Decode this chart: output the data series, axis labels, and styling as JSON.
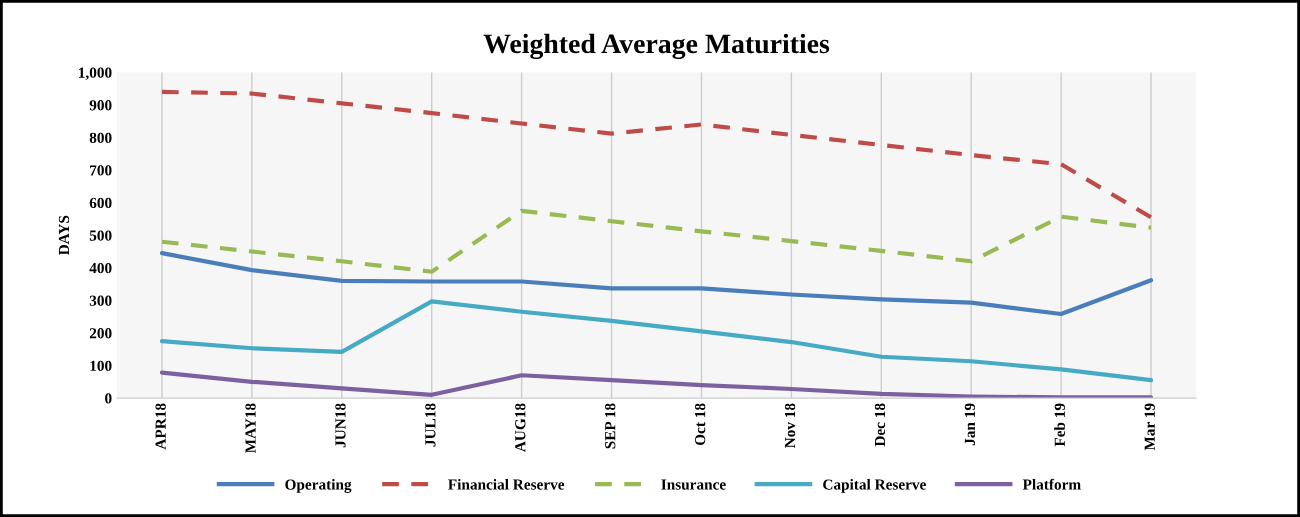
{
  "chart_data": {
    "type": "line",
    "title": "Weighted Average Maturities",
    "ylabel": "DAYS",
    "categories": [
      "APR18",
      "MAY18",
      "JUN18",
      "JUL18",
      "AUG18",
      "SEP 18",
      "Oct 18",
      "Nov 18",
      "Dec 18",
      "Jan 19",
      "Feb 19",
      "Mar 19"
    ],
    "series": [
      {
        "name": "Operating",
        "color": "#4a7ebb",
        "line_style": "solid",
        "values": [
          445,
          393,
          360,
          358,
          358,
          337,
          337,
          318,
          303,
          293,
          258,
          362
        ]
      },
      {
        "name": "Financial Reserve",
        "color": "#be4b48",
        "line_style": "dashed",
        "values": [
          940,
          935,
          905,
          875,
          843,
          812,
          840,
          808,
          777,
          746,
          718,
          555
        ]
      },
      {
        "name": "Insurance",
        "color": "#98b954",
        "line_style": "dashed",
        "values": [
          480,
          450,
          420,
          388,
          575,
          543,
          512,
          482,
          452,
          420,
          557,
          523
        ]
      },
      {
        "name": "Capital Reserve",
        "color": "#46aac5",
        "line_style": "solid",
        "values": [
          175,
          153,
          142,
          297,
          265,
          237,
          205,
          172,
          127,
          113,
          88,
          55
        ]
      },
      {
        "name": "Platform",
        "color": "#7d60a0",
        "line_style": "solid",
        "values": [
          78,
          50,
          30,
          10,
          70,
          55,
          40,
          28,
          13,
          5,
          2,
          2
        ]
      }
    ],
    "ylim": [
      0,
      1000
    ],
    "yticks": [
      0,
      100,
      200,
      300,
      400,
      500,
      600,
      700,
      800,
      900,
      {
        "value": 1000,
        "label": "1,000"
      }
    ],
    "grid": "x",
    "legend": "bottom"
  }
}
